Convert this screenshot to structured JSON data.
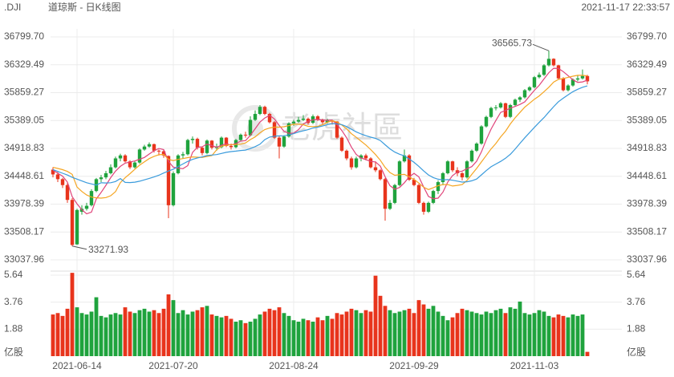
{
  "chart_data": {
    "type": "candlestick",
    "symbol": ".DJI",
    "title": "道琼斯 - 日K线图",
    "timestamp": "2021-11-17 22:33:57",
    "watermark": "老虎社區",
    "up_color": "#1fa33d",
    "down_color": "#e8341c",
    "grid": true,
    "ylim": [
      33037.96,
      36799.7
    ],
    "yticks": [
      {
        "value": 36799.7,
        "label": "36799.70"
      },
      36329.49,
      35859.27,
      35389.05,
      34918.83,
      34448.61,
      33978.39,
      33508.17,
      33037.96
    ],
    "categories": [
      null,
      null,
      null,
      null,
      null,
      "2021-06-14",
      null,
      null,
      null,
      null,
      null,
      null,
      null,
      null,
      null,
      null,
      null,
      null,
      null,
      null,
      null,
      null,
      null,
      null,
      null,
      "2021-07-20",
      null,
      null,
      null,
      null,
      null,
      null,
      null,
      null,
      null,
      null,
      null,
      null,
      null,
      null,
      null,
      null,
      null,
      null,
      null,
      null,
      null,
      null,
      null,
      null,
      "2021-08-24",
      null,
      null,
      null,
      null,
      null,
      null,
      null,
      null,
      null,
      null,
      null,
      null,
      null,
      null,
      null,
      null,
      null,
      null,
      null,
      null,
      null,
      null,
      null,
      null,
      "2021-09-29",
      null,
      null,
      null,
      null,
      null,
      null,
      null,
      null,
      null,
      null,
      null,
      null,
      null,
      null,
      null,
      null,
      null,
      null,
      null,
      null,
      null,
      null,
      null,
      null,
      "2021-11-03",
      null,
      null,
      null,
      null,
      null,
      null,
      null,
      null,
      null,
      null,
      null
    ],
    "candles": [
      [
        34560,
        34600,
        34430,
        34480
      ],
      [
        34480,
        34520,
        34350,
        34400
      ],
      [
        34400,
        34420,
        34250,
        34300
      ],
      [
        34300,
        34330,
        34000,
        34050
      ],
      [
        34050,
        34080,
        33271.93,
        33290
      ],
      [
        33300,
        33900,
        33290,
        33880
      ],
      [
        33850,
        33960,
        33800,
        33900
      ],
      [
        33900,
        34000,
        33870,
        33950
      ],
      [
        33960,
        34230,
        33940,
        34200
      ],
      [
        34200,
        34420,
        34180,
        34400
      ],
      [
        34400,
        34470,
        34350,
        34430
      ],
      [
        34430,
        34540,
        34400,
        34500
      ],
      [
        34500,
        34650,
        34480,
        34600
      ],
      [
        34600,
        34780,
        34580,
        34750
      ],
      [
        34750,
        34830,
        34700,
        34800
      ],
      [
        34800,
        34820,
        34680,
        34700
      ],
      [
        34700,
        34720,
        34570,
        34600
      ],
      [
        34600,
        34700,
        34580,
        34680
      ],
      [
        34680,
        34920,
        34660,
        34900
      ],
      [
        34900,
        34980,
        34880,
        34950
      ],
      [
        34950,
        35020,
        34930,
        34990
      ],
      [
        34990,
        35000,
        34850,
        34880
      ],
      [
        34880,
        34900,
        34800,
        34870
      ],
      [
        34870,
        34890,
        34760,
        34800
      ],
      [
        34790,
        34800,
        33741,
        33960
      ],
      [
        33960,
        34530,
        33940,
        34500
      ],
      [
        34500,
        34820,
        34480,
        34800
      ],
      [
        34800,
        34860,
        34750,
        34820
      ],
      [
        34820,
        35080,
        34800,
        35060
      ],
      [
        35060,
        35120,
        35000,
        35080
      ],
      [
        35080,
        35100,
        34900,
        34930
      ],
      [
        34930,
        34950,
        34800,
        34840
      ],
      [
        34840,
        35070,
        34820,
        35050
      ],
      [
        35050,
        35060,
        34900,
        34930
      ],
      [
        34930,
        35000,
        34880,
        34940
      ],
      [
        34940,
        35120,
        34920,
        35100
      ],
      [
        35100,
        35110,
        34940,
        34960
      ],
      [
        34960,
        35000,
        34900,
        34940
      ],
      [
        34940,
        35080,
        34920,
        35060
      ],
      [
        35060,
        35170,
        35040,
        35150
      ],
      [
        35150,
        35200,
        35100,
        35140
      ],
      [
        35140,
        35460,
        35120,
        35400
      ],
      [
        35400,
        35560,
        35380,
        35500
      ],
      [
        35500,
        35650,
        35480,
        35620
      ],
      [
        35620,
        35640,
        35480,
        35500
      ],
      [
        35500,
        35520,
        35340,
        35360
      ],
      [
        35360,
        35380,
        35080,
        35100
      ],
      [
        35100,
        35130,
        34750,
        34950
      ],
      [
        34950,
        35140,
        34930,
        35120
      ],
      [
        35120,
        35360,
        35100,
        35340
      ],
      [
        35340,
        35400,
        35300,
        35370
      ],
      [
        35370,
        35450,
        35350,
        35400
      ],
      [
        35400,
        35480,
        35380,
        35420
      ],
      [
        35420,
        35440,
        35320,
        35350
      ],
      [
        35350,
        35490,
        35330,
        35460
      ],
      [
        35460,
        35480,
        35380,
        35400
      ],
      [
        35400,
        35420,
        35330,
        35360
      ],
      [
        35360,
        35420,
        35340,
        35390
      ],
      [
        35390,
        35400,
        35320,
        35370
      ],
      [
        35370,
        35380,
        35080,
        35100
      ],
      [
        35100,
        35120,
        34860,
        34880
      ],
      [
        34880,
        34900,
        34720,
        34750
      ],
      [
        34750,
        34780,
        34560,
        34600
      ],
      [
        34600,
        34780,
        34580,
        34750
      ],
      [
        34750,
        34820,
        34700,
        34800
      ],
      [
        34800,
        34830,
        34720,
        34750
      ],
      [
        34750,
        34770,
        34580,
        34600
      ],
      [
        34600,
        34700,
        34520,
        34550
      ],
      [
        34550,
        34570,
        34380,
        34400
      ],
      [
        34400,
        34420,
        33700,
        33900
      ],
      [
        33900,
        34050,
        33880,
        34000
      ],
      [
        34000,
        34320,
        33980,
        34300
      ],
      [
        34300,
        34720,
        34280,
        34700
      ],
      [
        34700,
        34900,
        34680,
        34800
      ],
      [
        34800,
        34820,
        34370,
        34390
      ],
      [
        34390,
        34420,
        34280,
        34300
      ],
      [
        34300,
        34320,
        33980,
        34000
      ],
      [
        34000,
        34020,
        33800,
        33850
      ],
      [
        33850,
        34020,
        33830,
        34000
      ],
      [
        34000,
        34220,
        33980,
        34200
      ],
      [
        34200,
        34380,
        34150,
        34350
      ],
      [
        34350,
        34520,
        34300,
        34500
      ],
      [
        34500,
        34720,
        34480,
        34700
      ],
      [
        34700,
        34710,
        34520,
        34550
      ],
      [
        34550,
        34600,
        34450,
        34500
      ],
      [
        34500,
        34520,
        34380,
        34430
      ],
      [
        34430,
        34720,
        34410,
        34700
      ],
      [
        34700,
        34900,
        34680,
        34880
      ],
      [
        34880,
        35020,
        34860,
        35000
      ],
      [
        35000,
        35310,
        34980,
        35290
      ],
      [
        35290,
        35470,
        35270,
        35450
      ],
      [
        35450,
        35620,
        35430,
        35600
      ],
      [
        35600,
        35650,
        35560,
        35610
      ],
      [
        35610,
        35700,
        35590,
        35680
      ],
      [
        35680,
        35690,
        35430,
        35450
      ],
      [
        35450,
        35670,
        35430,
        35650
      ],
      [
        35650,
        35760,
        35630,
        35740
      ],
      [
        35740,
        35800,
        35700,
        35780
      ],
      [
        35780,
        35920,
        35760,
        35900
      ],
      [
        35900,
        35970,
        35880,
        35950
      ],
      [
        35950,
        36140,
        35930,
        36120
      ],
      [
        36120,
        36200,
        36100,
        36160
      ],
      [
        36160,
        36340,
        36140,
        36320
      ],
      [
        36320,
        36565.73,
        36300,
        36430
      ],
      [
        36430,
        36440,
        36300,
        36320
      ],
      [
        36320,
        36330,
        36080,
        36100
      ],
      [
        36100,
        36120,
        35880,
        35900
      ],
      [
        35900,
        36000,
        35880,
        35980
      ],
      [
        35980,
        36100,
        35960,
        36080
      ],
      [
        36080,
        36150,
        36050,
        36100
      ],
      [
        36100,
        36250,
        36080,
        36140
      ],
      [
        36140,
        36160,
        36000,
        36050
      ]
    ],
    "moving_averages": [
      {
        "color": "#e0447a",
        "values": [
          34550,
          34500,
          34450,
          34350,
          34104,
          33984,
          33884,
          33814,
          33844,
          34066,
          34176,
          34296,
          34426,
          34536,
          34616,
          34670,
          34690,
          34706,
          34736,
          34766,
          34824,
          34880,
          34918,
          34898,
          34700,
          34602,
          34586,
          34576,
          34628,
          34852,
          34938,
          34946,
          34992,
          34966,
          34938,
          34972,
          34996,
          34974,
          35000,
          35042,
          35050,
          35138,
          35250,
          35362,
          35432,
          35476,
          35416,
          35306,
          35206,
          35174,
          35176,
          35236,
          35330,
          35376,
          35400,
          35406,
          35398,
          35392,
          35396,
          35324,
          35220,
          35098,
          34940,
          34816,
          34756,
          34730,
          34700,
          34690,
          34620,
          34440,
          34290,
          34230,
          34260,
          34340,
          34438,
          34498,
          34438,
          34268,
          34108,
          34070,
          34080,
          34180,
          34350,
          34460,
          34520,
          34536,
          34576,
          34612,
          34702,
          34860,
          35064,
          35244,
          35390,
          35526,
          35558,
          35598,
          35626,
          35660,
          35704,
          35804,
          35898,
          35982,
          36090,
          36196,
          36270,
          36266,
          36214,
          36146,
          36076,
          36032,
          36040,
          36070
        ]
      },
      {
        "color": "#f5a623",
        "values": [
          34600,
          34580,
          34560,
          34530,
          34480,
          34267,
          34192,
          34132,
          34097,
          34085,
          34080,
          34090,
          34120,
          34190,
          34341,
          34423,
          34493,
          34566,
          34636,
          34691,
          34747,
          34785,
          34812,
          34817,
          34733,
          34713,
          34733,
          34747,
          34763,
          34776,
          34770,
          34766,
          34784,
          34797,
          34895,
          34955,
          34971,
          34983,
          34983,
          34990,
          35011,
          35067,
          35112,
          35181,
          35237,
          35263,
          35277,
          35278,
          35284,
          35303,
          35326,
          35326,
          35318,
          35291,
          35287,
          35291,
          35317,
          35361,
          35386,
          35362,
          35313,
          35248,
          35166,
          35106,
          35040,
          34975,
          34899,
          34815,
          34718,
          34598,
          34510,
          34465,
          34475,
          34480,
          34439,
          34394,
          34334,
          34264,
          34224,
          34254,
          34289,
          34309,
          34309,
          34284,
          34295,
          34308,
          34378,
          34481,
          34581,
          34690,
          34800,
          34910,
          35001,
          35114,
          35209,
          35331,
          35435,
          35525,
          35615,
          35681,
          35748,
          35804,
          35875,
          35950,
          36037,
          36082,
          36098,
          36118,
          36136,
          36151,
          36153,
          36142
        ]
      },
      {
        "color": "#3a9bdc",
        "values": [
          34560,
          34530,
          34500,
          34470,
          34430,
          34400,
          34370,
          34340,
          34320,
          34300,
          34340,
          34335,
          34340,
          34360,
          34410,
          34345,
          34342,
          34349,
          34366,
          34388,
          34413,
          34437,
          34466,
          34503,
          34537,
          34568,
          34613,
          34656,
          34699,
          34733,
          34758,
          34775,
          34798,
          34807,
          34814,
          34834,
          34852,
          34865,
          34873,
          34883,
          34890,
          34916,
          34948,
          34989,
          35066,
          35109,
          35124,
          35130,
          35133,
          35146,
          35168,
          35196,
          35215,
          35236,
          35262,
          35277,
          35297,
          35319,
          35335,
          35332,
          35319,
          35287,
          35242,
          35198,
          35163,
          35133,
          35108,
          35088,
          35052,
          34980,
          34911,
          34856,
          34820,
          34793,
          34739,
          34684,
          34616,
          34539,
          34471,
          34426,
          34399,
          34387,
          34392,
          34382,
          34367,
          34351,
          34356,
          34372,
          34402,
          34472,
          34544,
          34609,
          34655,
          34699,
          34752,
          34819,
          34906,
          35003,
          35098,
          35185,
          35274,
          35357,
          35438,
          35532,
          35623,
          35706,
          35766,
          35821,
          35875,
          35916,
          35950,
          35973
        ]
      }
    ],
    "volume": {
      "unit": "亿股",
      "ylim": [
        0,
        5.64
      ],
      "yticks": [
        5.64,
        3.76,
        1.88
      ],
      "values": [
        2.9,
        3.0,
        2.8,
        3.3,
        5.8,
        3.4,
        3.0,
        2.9,
        3.1,
        4.1,
        2.8,
        2.7,
        2.9,
        3.0,
        2.9,
        3.4,
        3.1,
        3.0,
        3.2,
        3.3,
        3.1,
        3.2,
        3.0,
        3.3,
        4.3,
        3.9,
        3.0,
        3.2,
        2.9,
        3.1,
        3.2,
        3.4,
        3.5,
        2.9,
        2.8,
        2.7,
        2.8,
        2.6,
        2.4,
        2.5,
        2.3,
        2.4,
        2.6,
        2.9,
        3.1,
        3.3,
        3.2,
        3.4,
        3.0,
        2.8,
        2.5,
        2.4,
        2.6,
        2.5,
        2.4,
        2.7,
        2.5,
        2.8,
        2.6,
        3.0,
        2.9,
        3.1,
        3.3,
        3.2,
        3.0,
        3.2,
        3.1,
        5.6,
        4.2,
        3.5,
        3.2,
        3.0,
        3.1,
        3.2,
        3.3,
        3.0,
        3.9,
        3.6,
        3.3,
        3.5,
        3.1,
        2.8,
        2.5,
        2.7,
        3.0,
        3.3,
        3.2,
        3.1,
        3.0,
        2.9,
        3.1,
        3.0,
        3.2,
        3.3,
        3.0,
        3.4,
        3.3,
        3.8,
        3.0,
        2.9,
        3.0,
        3.2,
        3.1,
        2.8,
        2.7,
        2.9,
        2.8,
        2.7,
        2.9,
        2.8,
        2.9,
        0.3
      ]
    }
  }
}
